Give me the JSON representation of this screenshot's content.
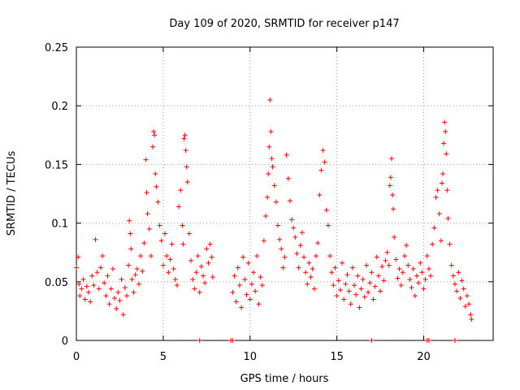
{
  "chart_data": {
    "type": "scatter",
    "title": "Day 109 of 2020, SRMTID for receiver p147",
    "xlabel": "GPS time / hours",
    "ylabel": "SRMTID / TECUs",
    "xlim": [
      0,
      24
    ],
    "ylim": [
      0,
      0.25
    ],
    "x_ticks": [
      0,
      5,
      10,
      15,
      20
    ],
    "x_tick_labels": [
      "0",
      "5",
      "10",
      "15",
      "20"
    ],
    "y_ticks": [
      0,
      0.05,
      0.1,
      0.15,
      0.2,
      0.25
    ],
    "y_tick_labels": [
      "0",
      "0.05",
      "0.1",
      "0.15",
      "0.2",
      "0.25"
    ],
    "grid": true,
    "marker": "+",
    "series": [
      {
        "name": "SRMTID",
        "color": "#ff0000",
        "points": [
          [
            0.0,
            0.062
          ],
          [
            0.1,
            0.071
          ],
          [
            0.15,
            0.048
          ],
          [
            0.2,
            0.038
          ],
          [
            0.3,
            0.044
          ],
          [
            0.4,
            0.052
          ],
          [
            0.5,
            0.035
          ],
          [
            0.6,
            0.046
          ],
          [
            0.7,
            0.041
          ],
          [
            0.8,
            0.033
          ],
          [
            0.9,
            0.055
          ],
          [
            1.0,
            0.047
          ],
          [
            1.1,
            0.086
          ],
          [
            1.2,
            0.058
          ],
          [
            1.3,
            0.044
          ],
          [
            1.4,
            0.062
          ],
          [
            1.5,
            0.072
          ],
          [
            1.6,
            0.049
          ],
          [
            1.7,
            0.038
          ],
          [
            1.8,
            0.055
          ],
          [
            1.9,
            0.031
          ],
          [
            2.0,
            0.044
          ],
          [
            2.1,
            0.061
          ],
          [
            2.2,
            0.036
          ],
          [
            2.3,
            0.027
          ],
          [
            2.4,
            0.041
          ],
          [
            2.5,
            0.034
          ],
          [
            2.6,
            0.052
          ],
          [
            2.7,
            0.022
          ],
          [
            2.8,
            0.045
          ],
          [
            2.9,
            0.038
          ],
          [
            3.0,
            0.064
          ],
          [
            3.05,
            0.102
          ],
          [
            3.1,
            0.091
          ],
          [
            3.15,
            0.078
          ],
          [
            3.2,
            0.052
          ],
          [
            3.3,
            0.041
          ],
          [
            3.4,
            0.056
          ],
          [
            3.5,
            0.061
          ],
          [
            3.6,
            0.048
          ],
          [
            3.7,
            0.072
          ],
          [
            3.8,
            0.059
          ],
          [
            3.9,
            0.083
          ],
          [
            4.0,
            0.154
          ],
          [
            4.05,
            0.126
          ],
          [
            4.1,
            0.108
          ],
          [
            4.2,
            0.095
          ],
          [
            4.3,
            0.072
          ],
          [
            4.4,
            0.165
          ],
          [
            4.45,
            0.178
          ],
          [
            4.5,
            0.175
          ],
          [
            4.55,
            0.142
          ],
          [
            4.6,
            0.131
          ],
          [
            4.7,
            0.118
          ],
          [
            4.8,
            0.098
          ],
          [
            4.9,
            0.085
          ],
          [
            5.0,
            0.064
          ],
          [
            5.1,
            0.091
          ],
          [
            5.2,
            0.072
          ],
          [
            5.3,
            0.058
          ],
          [
            5.4,
            0.069
          ],
          [
            5.5,
            0.082
          ],
          [
            5.6,
            0.061
          ],
          [
            5.7,
            0.052
          ],
          [
            5.8,
            0.047
          ],
          [
            5.9,
            0.114
          ],
          [
            6.0,
            0.128
          ],
          [
            6.1,
            0.098
          ],
          [
            6.15,
            0.082
          ],
          [
            6.2,
            0.172
          ],
          [
            6.25,
            0.175
          ],
          [
            6.3,
            0.162
          ],
          [
            6.35,
            0.148
          ],
          [
            6.4,
            0.135
          ],
          [
            6.5,
            0.091
          ],
          [
            6.6,
            0.068
          ],
          [
            6.7,
            0.052
          ],
          [
            6.8,
            0.044
          ],
          [
            6.9,
            0.058
          ],
          [
            7.0,
            0.072
          ],
          [
            7.1,
            0.041
          ],
          [
            7.2,
            0.063
          ],
          [
            7.3,
            0.055
          ],
          [
            7.4,
            0.049
          ],
          [
            7.5,
            0.078
          ],
          [
            7.6,
            0.066
          ],
          [
            7.7,
            0.082
          ],
          [
            7.8,
            0.071
          ],
          [
            7.85,
            0.054
          ],
          [
            9.0,
            0.041
          ],
          [
            9.1,
            0.055
          ],
          [
            9.2,
            0.033
          ],
          [
            9.3,
            0.062
          ],
          [
            9.4,
            0.047
          ],
          [
            9.5,
            0.028
          ],
          [
            9.6,
            0.071
          ],
          [
            9.7,
            0.052
          ],
          [
            9.8,
            0.039
          ],
          [
            9.9,
            0.066
          ],
          [
            10.0,
            0.035
          ],
          [
            10.1,
            0.048
          ],
          [
            10.2,
            0.058
          ],
          [
            10.3,
            0.042
          ],
          [
            10.4,
            0.072
          ],
          [
            10.5,
            0.031
          ],
          [
            10.6,
            0.054
          ],
          [
            10.7,
            0.047
          ],
          [
            10.8,
            0.085
          ],
          [
            10.9,
            0.106
          ],
          [
            11.0,
            0.122
          ],
          [
            11.05,
            0.142
          ],
          [
            11.1,
            0.165
          ],
          [
            11.15,
            0.205
          ],
          [
            11.2,
            0.178
          ],
          [
            11.25,
            0.155
          ],
          [
            11.3,
            0.148
          ],
          [
            11.4,
            0.132
          ],
          [
            11.5,
            0.118
          ],
          [
            11.6,
            0.098
          ],
          [
            11.7,
            0.086
          ],
          [
            11.8,
            0.078
          ],
          [
            11.9,
            0.062
          ],
          [
            12.0,
            0.071
          ],
          [
            12.1,
            0.158
          ],
          [
            12.2,
            0.138
          ],
          [
            12.3,
            0.119
          ],
          [
            12.4,
            0.103
          ],
          [
            12.5,
            0.096
          ],
          [
            12.6,
            0.088
          ],
          [
            12.7,
            0.074
          ],
          [
            12.8,
            0.062
          ],
          [
            12.9,
            0.081
          ],
          [
            13.0,
            0.092
          ],
          [
            13.1,
            0.071
          ],
          [
            13.2,
            0.058
          ],
          [
            13.3,
            0.048
          ],
          [
            13.4,
            0.066
          ],
          [
            13.5,
            0.054
          ],
          [
            13.6,
            0.061
          ],
          [
            13.7,
            0.044
          ],
          [
            13.8,
            0.072
          ],
          [
            13.9,
            0.083
          ],
          [
            14.0,
            0.124
          ],
          [
            14.1,
            0.145
          ],
          [
            14.2,
            0.162
          ],
          [
            14.3,
            0.152
          ],
          [
            14.4,
            0.111
          ],
          [
            14.5,
            0.098
          ],
          [
            14.6,
            0.072
          ],
          [
            14.7,
            0.058
          ],
          [
            14.8,
            0.047
          ],
          [
            14.9,
            0.062
          ],
          [
            15.0,
            0.038
          ],
          [
            15.1,
            0.051
          ],
          [
            15.2,
            0.043
          ],
          [
            15.3,
            0.066
          ],
          [
            15.4,
            0.035
          ],
          [
            15.5,
            0.048
          ],
          [
            15.6,
            0.056
          ],
          [
            15.7,
            0.042
          ],
          [
            15.8,
            0.031
          ],
          [
            15.9,
            0.062
          ],
          [
            16.0,
            0.047
          ],
          [
            16.1,
            0.039
          ],
          [
            16.2,
            0.055
          ],
          [
            16.3,
            0.028
          ],
          [
            16.4,
            0.044
          ],
          [
            16.5,
            0.052
          ],
          [
            16.6,
            0.037
          ],
          [
            16.7,
            0.064
          ],
          [
            16.8,
            0.041
          ],
          [
            16.9,
            0.049
          ],
          [
            17.0,
            0.058
          ],
          [
            17.1,
            0.035
          ],
          [
            17.2,
            0.046
          ],
          [
            17.3,
            0.071
          ],
          [
            17.4,
            0.055
          ],
          [
            17.5,
            0.042
          ],
          [
            17.6,
            0.063
          ],
          [
            17.7,
            0.051
          ],
          [
            17.8,
            0.068
          ],
          [
            17.9,
            0.075
          ],
          [
            18.0,
            0.064
          ],
          [
            18.05,
            0.132
          ],
          [
            18.1,
            0.139
          ],
          [
            18.15,
            0.155
          ],
          [
            18.2,
            0.124
          ],
          [
            18.25,
            0.112
          ],
          [
            18.3,
            0.088
          ],
          [
            18.4,
            0.069
          ],
          [
            18.5,
            0.053
          ],
          [
            18.6,
            0.061
          ],
          [
            18.7,
            0.047
          ],
          [
            18.8,
            0.058
          ],
          [
            18.9,
            0.072
          ],
          [
            19.0,
            0.081
          ],
          [
            19.1,
            0.064
          ],
          [
            19.2,
            0.052
          ],
          [
            19.3,
            0.045
          ],
          [
            19.4,
            0.061
          ],
          [
            19.5,
            0.038
          ],
          [
            19.6,
            0.055
          ],
          [
            19.7,
            0.049
          ],
          [
            19.8,
            0.066
          ],
          [
            19.9,
            0.058
          ],
          [
            20.0,
            0.044
          ],
          [
            20.1,
            0.052
          ],
          [
            20.2,
            0.072
          ],
          [
            20.3,
            0.061
          ],
          [
            20.4,
            0.055
          ],
          [
            20.5,
            0.082
          ],
          [
            20.6,
            0.096
          ],
          [
            20.7,
            0.122
          ],
          [
            20.8,
            0.128
          ],
          [
            20.9,
            0.108
          ],
          [
            21.0,
            0.085
          ],
          [
            21.05,
            0.134
          ],
          [
            21.1,
            0.142
          ],
          [
            21.15,
            0.168
          ],
          [
            21.2,
            0.186
          ],
          [
            21.25,
            0.178
          ],
          [
            21.3,
            0.159
          ],
          [
            21.35,
            0.128
          ],
          [
            21.4,
            0.104
          ],
          [
            21.5,
            0.082
          ],
          [
            21.6,
            0.064
          ],
          [
            21.7,
            0.055
          ],
          [
            21.8,
            0.048
          ],
          [
            21.9,
            0.042
          ],
          [
            22.0,
            0.058
          ],
          [
            22.1,
            0.036
          ],
          [
            22.2,
            0.051
          ],
          [
            22.3,
            0.044
          ],
          [
            22.4,
            0.029
          ],
          [
            22.5,
            0.038
          ],
          [
            22.6,
            0.031
          ],
          [
            22.7,
            0.022
          ],
          [
            22.75,
            0.018
          ]
        ],
        "zero_points": [
          7.1,
          8.9,
          9.0,
          17.0,
          20.2,
          20.3,
          21.8
        ]
      }
    ]
  }
}
